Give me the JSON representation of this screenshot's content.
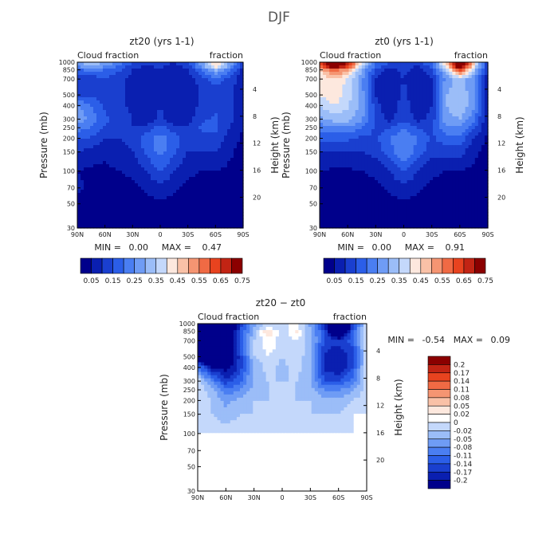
{
  "page_title": "DJF",
  "colors": {
    "ramp_full": [
      "#00008b",
      "#0a1fb0",
      "#1a3fcf",
      "#2b5ee8",
      "#4a7ef2",
      "#6f9cf5",
      "#9bbdf8",
      "#c4d8fb",
      "#fde8de",
      "#f9c1a7",
      "#f59572",
      "#f06a44",
      "#e8431f",
      "#c22414",
      "#8b0000"
    ],
    "ramp_diff": [
      "#00008b",
      "#0a1fb0",
      "#1a3fcf",
      "#2b5ee8",
      "#4a7ef2",
      "#6f9cf5",
      "#9bbdf8",
      "#c4d8fb",
      "#ffffff",
      "#fde8de",
      "#f9c1a7",
      "#f59572",
      "#f06a44",
      "#e8431f",
      "#c22414",
      "#8b0000"
    ]
  },
  "colorbar_full": {
    "labels": [
      "0.05",
      "0.15",
      "0.25",
      "0.35",
      "0.45",
      "0.55",
      "0.65",
      "0.75"
    ]
  },
  "colorbar_diff": {
    "labels": [
      "0.2",
      "0.17",
      "0.14",
      "0.11",
      "0.08",
      "0.05",
      "0.02",
      "0",
      "-0.02",
      "-0.05",
      "-0.08",
      "-0.11",
      "-0.14",
      "-0.17",
      "-0.2"
    ]
  },
  "chart_data": [
    {
      "type": "heatmap",
      "id": "zt20",
      "title": "zt20 (yrs 1-1)",
      "left_label": "Cloud fraction",
      "right_label": "fraction",
      "xlabel": "",
      "ylabel": "Pressure (mb)",
      "y2label": "Height (km)",
      "x_ticks": [
        "90N",
        "60N",
        "30N",
        "0",
        "30S",
        "60S",
        "90S"
      ],
      "y_ticks": [
        "1000",
        "850",
        "700",
        "500",
        "400",
        "300",
        "250",
        "200",
        "150",
        "100",
        "70",
        "50",
        "30"
      ],
      "y_tick_values": [
        1000,
        850,
        700,
        500,
        400,
        300,
        250,
        200,
        150,
        100,
        70,
        50,
        30
      ],
      "height_ticks": [
        "4",
        "8",
        "12",
        "16",
        "20"
      ],
      "height_tick_values": [
        4,
        8,
        12,
        16,
        20
      ],
      "stats": {
        "min_label": "MIN =",
        "min": "0.00",
        "max_label": "MAX =",
        "max": "0.47"
      },
      "field": {
        "lats": [
          -90,
          -75,
          -60,
          -45,
          -30,
          -15,
          0,
          15,
          30,
          45,
          60,
          75,
          90
        ],
        "levels": [
          1000,
          925,
          850,
          700,
          600,
          500,
          400,
          300,
          250,
          200,
          150,
          100,
          70,
          50,
          30
        ],
        "values": [
          [
            0.1,
            0.3,
            0.45,
            0.28,
            0.14,
            0.1,
            0.12,
            0.12,
            0.16,
            0.24,
            0.3,
            0.34,
            0.3
          ],
          [
            0.1,
            0.28,
            0.44,
            0.26,
            0.13,
            0.08,
            0.11,
            0.1,
            0.12,
            0.2,
            0.26,
            0.3,
            0.26
          ],
          [
            0.08,
            0.22,
            0.32,
            0.2,
            0.1,
            0.06,
            0.1,
            0.06,
            0.1,
            0.16,
            0.2,
            0.22,
            0.18
          ],
          [
            0.06,
            0.14,
            0.18,
            0.12,
            0.07,
            0.05,
            0.09,
            0.05,
            0.08,
            0.12,
            0.14,
            0.12,
            0.1
          ],
          [
            0.06,
            0.12,
            0.14,
            0.12,
            0.06,
            0.05,
            0.1,
            0.05,
            0.08,
            0.12,
            0.12,
            0.1,
            0.1
          ],
          [
            0.06,
            0.12,
            0.14,
            0.12,
            0.06,
            0.05,
            0.1,
            0.05,
            0.08,
            0.12,
            0.12,
            0.14,
            0.12
          ],
          [
            0.05,
            0.12,
            0.14,
            0.12,
            0.06,
            0.05,
            0.1,
            0.05,
            0.08,
            0.12,
            0.14,
            0.2,
            0.26
          ],
          [
            0.05,
            0.12,
            0.16,
            0.14,
            0.08,
            0.06,
            0.12,
            0.06,
            0.1,
            0.14,
            0.16,
            0.24,
            0.28
          ],
          [
            0.05,
            0.1,
            0.16,
            0.16,
            0.1,
            0.12,
            0.18,
            0.12,
            0.1,
            0.12,
            0.14,
            0.2,
            0.22
          ],
          [
            0.04,
            0.08,
            0.14,
            0.14,
            0.12,
            0.18,
            0.22,
            0.18,
            0.12,
            0.1,
            0.1,
            0.14,
            0.16
          ],
          [
            0.03,
            0.06,
            0.1,
            0.1,
            0.1,
            0.16,
            0.22,
            0.16,
            0.1,
            0.08,
            0.06,
            0.08,
            0.1
          ],
          [
            0.02,
            0.04,
            0.05,
            0.05,
            0.06,
            0.1,
            0.16,
            0.1,
            0.06,
            0.05,
            0.04,
            0.04,
            0.05
          ],
          [
            0.01,
            0.02,
            0.03,
            0.03,
            0.04,
            0.06,
            0.08,
            0.06,
            0.04,
            0.03,
            0.03,
            0.04,
            0.06
          ],
          [
            0.01,
            0.01,
            0.02,
            0.02,
            0.02,
            0.03,
            0.04,
            0.03,
            0.02,
            0.02,
            0.02,
            0.03,
            0.04
          ],
          [
            0.0,
            0.01,
            0.01,
            0.01,
            0.01,
            0.01,
            0.02,
            0.01,
            0.01,
            0.01,
            0.01,
            0.02,
            0.02
          ]
        ]
      }
    },
    {
      "type": "heatmap",
      "id": "zt0",
      "title": "zt0 (yrs 1-1)",
      "left_label": "Cloud fraction",
      "right_label": "fraction",
      "xlabel": "",
      "ylabel": "Pressure (mb)",
      "y2label": "Height (km)",
      "x_ticks": [
        "90N",
        "60N",
        "30N",
        "0",
        "30S",
        "60S",
        "90S"
      ],
      "y_ticks": [
        "1000",
        "850",
        "700",
        "500",
        "400",
        "300",
        "250",
        "200",
        "150",
        "100",
        "70",
        "50",
        "30"
      ],
      "y_tick_values": [
        1000,
        850,
        700,
        500,
        400,
        300,
        250,
        200,
        150,
        100,
        70,
        50,
        30
      ],
      "height_ticks": [
        "4",
        "8",
        "12",
        "16",
        "20"
      ],
      "height_tick_values": [
        4,
        8,
        12,
        16,
        20
      ],
      "stats": {
        "min_label": "MIN =",
        "min": "0.00",
        "max_label": "MAX =",
        "max": "0.91"
      },
      "field": {
        "lats": [
          -90,
          -75,
          -60,
          -45,
          -30,
          -15,
          0,
          15,
          30,
          45,
          60,
          75,
          90
        ],
        "levels": [
          1000,
          925,
          850,
          700,
          600,
          500,
          400,
          300,
          250,
          200,
          150,
          100,
          70,
          50,
          30
        ],
        "values": [
          [
            0.1,
            0.45,
            0.88,
            0.45,
            0.2,
            0.12,
            0.14,
            0.14,
            0.22,
            0.4,
            0.7,
            0.85,
            0.6
          ],
          [
            0.1,
            0.42,
            0.85,
            0.42,
            0.18,
            0.1,
            0.13,
            0.12,
            0.18,
            0.36,
            0.66,
            0.8,
            0.55
          ],
          [
            0.08,
            0.35,
            0.66,
            0.34,
            0.14,
            0.07,
            0.12,
            0.08,
            0.14,
            0.3,
            0.5,
            0.6,
            0.46
          ],
          [
            0.06,
            0.26,
            0.34,
            0.26,
            0.1,
            0.05,
            0.1,
            0.05,
            0.1,
            0.26,
            0.4,
            0.44,
            0.4
          ],
          [
            0.06,
            0.26,
            0.32,
            0.28,
            0.1,
            0.05,
            0.11,
            0.05,
            0.1,
            0.26,
            0.38,
            0.42,
            0.4
          ],
          [
            0.06,
            0.28,
            0.34,
            0.3,
            0.1,
            0.05,
            0.12,
            0.05,
            0.1,
            0.28,
            0.38,
            0.44,
            0.4
          ],
          [
            0.05,
            0.26,
            0.34,
            0.3,
            0.1,
            0.06,
            0.13,
            0.06,
            0.12,
            0.28,
            0.36,
            0.4,
            0.36
          ],
          [
            0.05,
            0.22,
            0.3,
            0.28,
            0.12,
            0.08,
            0.14,
            0.08,
            0.14,
            0.26,
            0.32,
            0.32,
            0.28
          ],
          [
            0.05,
            0.16,
            0.24,
            0.24,
            0.14,
            0.14,
            0.2,
            0.14,
            0.14,
            0.2,
            0.24,
            0.24,
            0.22
          ],
          [
            0.04,
            0.1,
            0.18,
            0.18,
            0.14,
            0.2,
            0.24,
            0.2,
            0.14,
            0.14,
            0.16,
            0.16,
            0.16
          ],
          [
            0.03,
            0.06,
            0.12,
            0.12,
            0.12,
            0.18,
            0.24,
            0.18,
            0.12,
            0.1,
            0.1,
            0.1,
            0.1
          ],
          [
            0.02,
            0.04,
            0.05,
            0.05,
            0.06,
            0.1,
            0.16,
            0.1,
            0.06,
            0.05,
            0.04,
            0.04,
            0.05
          ],
          [
            0.01,
            0.02,
            0.03,
            0.03,
            0.04,
            0.06,
            0.08,
            0.06,
            0.04,
            0.03,
            0.03,
            0.03,
            0.04
          ],
          [
            0.01,
            0.01,
            0.02,
            0.02,
            0.02,
            0.03,
            0.04,
            0.03,
            0.02,
            0.02,
            0.02,
            0.02,
            0.03
          ],
          [
            0.0,
            0.01,
            0.01,
            0.01,
            0.01,
            0.01,
            0.02,
            0.01,
            0.01,
            0.01,
            0.01,
            0.01,
            0.01
          ]
        ]
      }
    },
    {
      "type": "heatmap",
      "id": "diff",
      "title": "zt20 − zt0",
      "left_label": "Cloud fraction",
      "right_label": "fraction",
      "xlabel": "",
      "ylabel": "Pressure (mb)",
      "y2label": "Height (km)",
      "x_ticks": [
        "90N",
        "60N",
        "30N",
        "0",
        "30S",
        "60S",
        "90S"
      ],
      "y_ticks": [
        "1000",
        "850",
        "700",
        "500",
        "400",
        "300",
        "250",
        "200",
        "150",
        "100",
        "70",
        "50",
        "30"
      ],
      "y_tick_values": [
        1000,
        850,
        700,
        500,
        400,
        300,
        250,
        200,
        150,
        100,
        70,
        50,
        30
      ],
      "height_ticks": [
        "4",
        "8",
        "12",
        "16",
        "20"
      ],
      "height_tick_values": [
        4,
        8,
        12,
        16,
        20
      ],
      "stats": {
        "min_label": "MIN =",
        "min": "-0.54",
        "max_label": "MAX =",
        "max": "0.09"
      },
      "field": {
        "lats": [
          -90,
          -75,
          -60,
          -45,
          -30,
          -15,
          0,
          15,
          30,
          45,
          60,
          75,
          90
        ],
        "levels": [
          1000,
          925,
          850,
          700,
          600,
          500,
          400,
          300,
          250,
          200,
          150,
          100,
          70,
          50,
          30
        ],
        "values": [
          [
            0.0,
            -0.15,
            -0.43,
            -0.17,
            -0.06,
            0.02,
            -0.02,
            0.0,
            -0.06,
            -0.16,
            -0.4,
            -0.51,
            -0.3
          ],
          [
            0.0,
            -0.14,
            -0.41,
            -0.16,
            -0.05,
            0.01,
            -0.02,
            0.0,
            -0.05,
            -0.15,
            -0.4,
            -0.5,
            -0.28
          ],
          [
            0.0,
            -0.13,
            -0.34,
            -0.14,
            -0.04,
            0.03,
            -0.02,
            0.05,
            -0.04,
            -0.14,
            -0.3,
            -0.38,
            -0.28
          ],
          [
            0.0,
            -0.12,
            -0.16,
            -0.14,
            -0.03,
            0.0,
            -0.01,
            0.01,
            -0.02,
            -0.14,
            -0.26,
            -0.32,
            -0.3
          ],
          [
            0.0,
            -0.14,
            -0.18,
            -0.16,
            -0.04,
            0.0,
            -0.01,
            0.01,
            -0.02,
            -0.14,
            -0.26,
            -0.32,
            -0.3
          ],
          [
            0.0,
            -0.16,
            -0.2,
            -0.18,
            -0.04,
            0.0,
            -0.02,
            0.0,
            -0.02,
            -0.16,
            -0.26,
            -0.3,
            -0.28
          ],
          [
            0.0,
            -0.14,
            -0.2,
            -0.18,
            -0.04,
            -0.01,
            -0.03,
            -0.01,
            -0.04,
            -0.16,
            -0.22,
            -0.2,
            -0.1
          ],
          [
            0.0,
            -0.1,
            -0.14,
            -0.14,
            -0.04,
            -0.02,
            -0.02,
            -0.02,
            -0.04,
            -0.12,
            -0.16,
            -0.08,
            0.0
          ],
          [
            0.0,
            -0.06,
            -0.08,
            -0.08,
            -0.04,
            -0.02,
            -0.02,
            -0.02,
            -0.04,
            -0.08,
            -0.1,
            -0.04,
            0.0
          ],
          [
            0.0,
            -0.02,
            -0.04,
            -0.04,
            -0.02,
            -0.02,
            -0.02,
            -0.02,
            -0.02,
            -0.04,
            -0.06,
            -0.02,
            0.0
          ],
          [
            0.0,
            0.0,
            -0.02,
            -0.02,
            -0.02,
            -0.02,
            -0.02,
            -0.02,
            -0.02,
            -0.02,
            -0.04,
            -0.02,
            0.0
          ],
          [
            0.0,
            0.0,
            0.0,
            0.0,
            0.0,
            0.0,
            0.0,
            0.0,
            0.0,
            0.0,
            0.0,
            0.0,
            0.0
          ],
          [
            0.0,
            0.0,
            0.0,
            0.0,
            0.0,
            0.0,
            0.0,
            0.0,
            0.0,
            0.0,
            0.0,
            0.0,
            0.0
          ],
          [
            0.0,
            0.0,
            0.0,
            0.0,
            0.0,
            0.0,
            0.0,
            0.0,
            0.0,
            0.0,
            0.0,
            0.0,
            0.0
          ],
          [
            0.0,
            0.0,
            0.0,
            0.0,
            0.0,
            0.0,
            0.0,
            0.0,
            0.0,
            0.0,
            0.0,
            0.0,
            0.0
          ]
        ]
      }
    }
  ]
}
